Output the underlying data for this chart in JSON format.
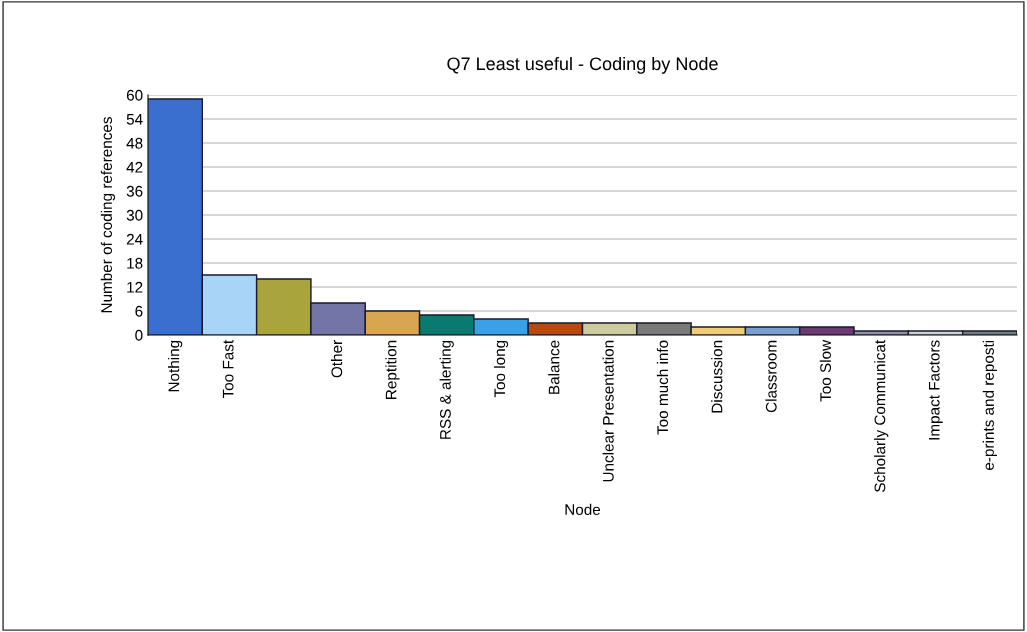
{
  "chart_data": {
    "type": "bar",
    "title": "Q7 Least useful - Coding by Node",
    "xlabel": "Node",
    "ylabel": "Number of coding references",
    "categories": [
      "Nothing",
      "Too Fast",
      null,
      "Other",
      "Reptition",
      "RSS & alerting",
      "Too long",
      "Balance",
      "Unclear Presentation",
      "Too much info",
      "Discussion",
      "Classroom",
      "Too Slow",
      "Scholarly Communicat",
      "Impact Factors",
      "e-prints and reposti"
    ],
    "values": [
      59,
      15,
      14,
      8,
      6,
      5,
      4,
      3,
      3,
      3,
      2,
      2,
      2,
      1,
      1,
      1
    ],
    "colors": [
      "#3a6fd0",
      "#a8d4f8",
      "#a9a43c",
      "#7275a6",
      "#d8a650",
      "#0a7a70",
      "#3aa0e8",
      "#b84a10",
      "#cccca0",
      "#7a7a7a",
      "#f0cc78",
      "#78a0d0",
      "#6a3a70",
      "#9090a8",
      "#c8d0d0",
      "#708080"
    ],
    "ylim": [
      0,
      60
    ],
    "yticks": [
      0,
      6,
      12,
      18,
      24,
      30,
      36,
      42,
      48,
      54,
      60
    ],
    "grid": "y"
  }
}
